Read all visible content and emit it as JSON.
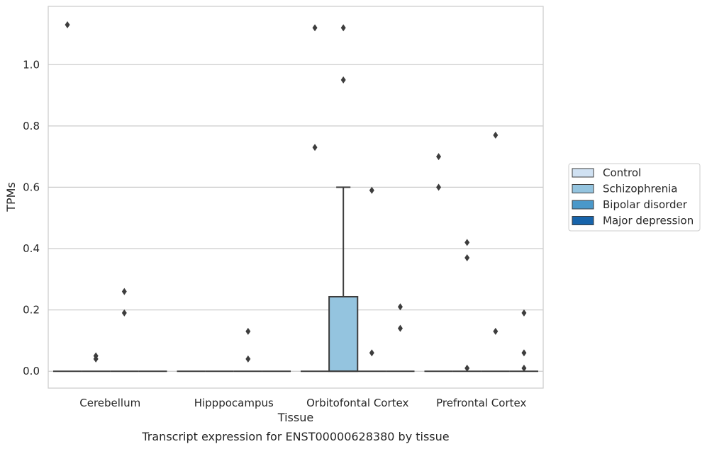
{
  "caption": "Transcript expression for ENST00000628380 by tissue",
  "chart_data": {
    "type": "box",
    "xlabel": "Tissue",
    "ylabel": "TPMs",
    "categories": [
      "Cerebellum",
      "Hipppocampus",
      "Orbitofontal Cortex",
      "Prefrontal Cortex"
    ],
    "ylim": [
      -0.055,
      1.19
    ],
    "yticks": [
      0.0,
      0.2,
      0.4,
      0.6,
      0.8,
      1.0
    ],
    "ytick_labels": [
      "0.0",
      "0.2",
      "0.4",
      "0.6",
      "0.8",
      "1.0"
    ],
    "grid": true,
    "legend_position": "right",
    "series": [
      {
        "name": "Control",
        "color": "#d0e1f2",
        "boxes": [
          {
            "category": "Cerebellum",
            "q1": 0,
            "median": 0,
            "q3": 0,
            "whisker_low": 0,
            "whisker_high": 0,
            "outliers": [
              1.13
            ]
          },
          {
            "category": "Hipppocampus",
            "q1": 0,
            "median": 0,
            "q3": 0,
            "whisker_low": 0,
            "whisker_high": 0,
            "outliers": []
          },
          {
            "category": "Orbitofontal Cortex",
            "q1": 0,
            "median": 0,
            "q3": 0,
            "whisker_low": 0,
            "whisker_high": 0,
            "outliers": [
              0.73,
              1.12
            ]
          },
          {
            "category": "Prefrontal Cortex",
            "q1": 0,
            "median": 0,
            "q3": 0,
            "whisker_low": 0,
            "whisker_high": 0,
            "outliers": [
              0.7,
              0.6
            ]
          }
        ]
      },
      {
        "name": "Schizophrenia",
        "color": "#94c4df",
        "boxes": [
          {
            "category": "Cerebellum",
            "q1": 0,
            "median": 0,
            "q3": 0,
            "whisker_low": 0,
            "whisker_high": 0,
            "outliers": [
              0.05,
              0.04
            ]
          },
          {
            "category": "Hipppocampus",
            "q1": 0,
            "median": 0,
            "q3": 0,
            "whisker_low": 0,
            "whisker_high": 0,
            "outliers": []
          },
          {
            "category": "Orbitofontal Cortex",
            "q1": 0,
            "median": 0,
            "q3": 0.243,
            "whisker_low": 0,
            "whisker_high": 0.6,
            "outliers": [
              1.12,
              0.95
            ]
          },
          {
            "category": "Prefrontal Cortex",
            "q1": 0,
            "median": 0,
            "q3": 0,
            "whisker_low": 0,
            "whisker_high": 0,
            "outliers": [
              0.42,
              0.37,
              0.01
            ]
          }
        ]
      },
      {
        "name": "Bipolar disorder",
        "color": "#4a98c9",
        "boxes": [
          {
            "category": "Cerebellum",
            "q1": 0,
            "median": 0,
            "q3": 0,
            "whisker_low": 0,
            "whisker_high": 0,
            "outliers": [
              0.26,
              0.19
            ]
          },
          {
            "category": "Hipppocampus",
            "q1": 0,
            "median": 0,
            "q3": 0,
            "whisker_low": 0,
            "whisker_high": 0,
            "outliers": [
              0.13,
              0.04
            ]
          },
          {
            "category": "Orbitofontal Cortex",
            "q1": 0,
            "median": 0,
            "q3": 0,
            "whisker_low": 0,
            "whisker_high": 0,
            "outliers": [
              0.59,
              0.06
            ]
          },
          {
            "category": "Prefrontal Cortex",
            "q1": 0,
            "median": 0,
            "q3": 0,
            "whisker_low": 0,
            "whisker_high": 0,
            "outliers": [
              0.77,
              0.13
            ]
          }
        ]
      },
      {
        "name": "Major depression",
        "color": "#1764ab",
        "boxes": [
          {
            "category": "Cerebellum",
            "q1": 0,
            "median": 0,
            "q3": 0,
            "whisker_low": 0,
            "whisker_high": 0,
            "outliers": []
          },
          {
            "category": "Hipppocampus",
            "q1": 0,
            "median": 0,
            "q3": 0,
            "whisker_low": 0,
            "whisker_high": 0,
            "outliers": []
          },
          {
            "category": "Orbitofontal Cortex",
            "q1": 0,
            "median": 0,
            "q3": 0,
            "whisker_low": 0,
            "whisker_high": 0,
            "outliers": [
              0.21,
              0.14
            ]
          },
          {
            "category": "Prefrontal Cortex",
            "q1": 0,
            "median": 0,
            "q3": 0,
            "whisker_low": 0,
            "whisker_high": 0,
            "outliers": [
              0.19,
              0.06,
              0.01
            ]
          }
        ]
      }
    ]
  }
}
